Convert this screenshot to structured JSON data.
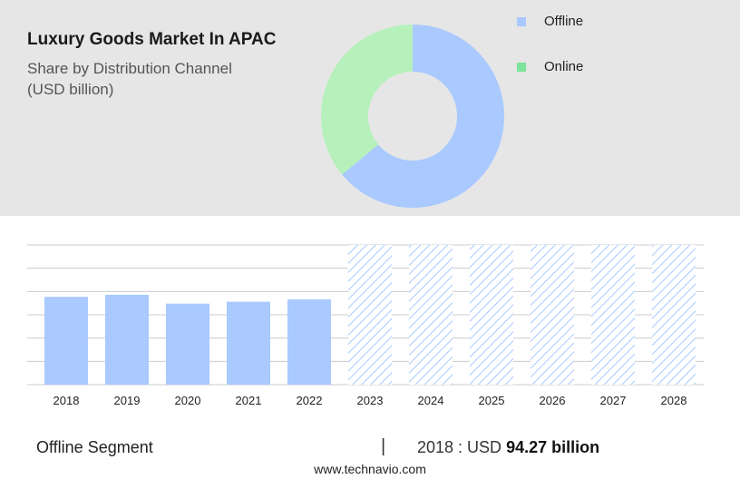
{
  "chart_data": [
    {
      "type": "pie",
      "variant": "donut",
      "title": "Luxury Goods Market In APAC",
      "subtitle_lines": [
        "Share by Distribution Channel",
        "(USD billion)"
      ],
      "legend_position": "top-right",
      "series": [
        {
          "name": "Offline",
          "value": 64,
          "color": "#a9c9ff"
        },
        {
          "name": "Online",
          "value": 36,
          "color": "#b6f0bb"
        }
      ],
      "legend_colors": {
        "Offline": "#a9c9ff",
        "Online": "#7ee39b"
      }
    },
    {
      "type": "bar",
      "categories": [
        "2018",
        "2019",
        "2020",
        "2021",
        "2022",
        "2023",
        "2024",
        "2025",
        "2026",
        "2027",
        "2028"
      ],
      "values": [
        94.27,
        96.5,
        87.0,
        89.0,
        91.5,
        null,
        null,
        null,
        null,
        null,
        null
      ],
      "forecast_categories": [
        "2023",
        "2024",
        "2025",
        "2026",
        "2027",
        "2028"
      ],
      "forecast_pattern": "hatched",
      "ylim": [
        0,
        150
      ],
      "grid": true,
      "bar_color": "#a9c9ff",
      "forecast_color": "#a9c9ff"
    }
  ],
  "footer": {
    "segment": "Offline Segment",
    "separator": "|",
    "year_label": "2018 : USD ",
    "value": "94.27 billion",
    "website": "www.technavio.com"
  }
}
